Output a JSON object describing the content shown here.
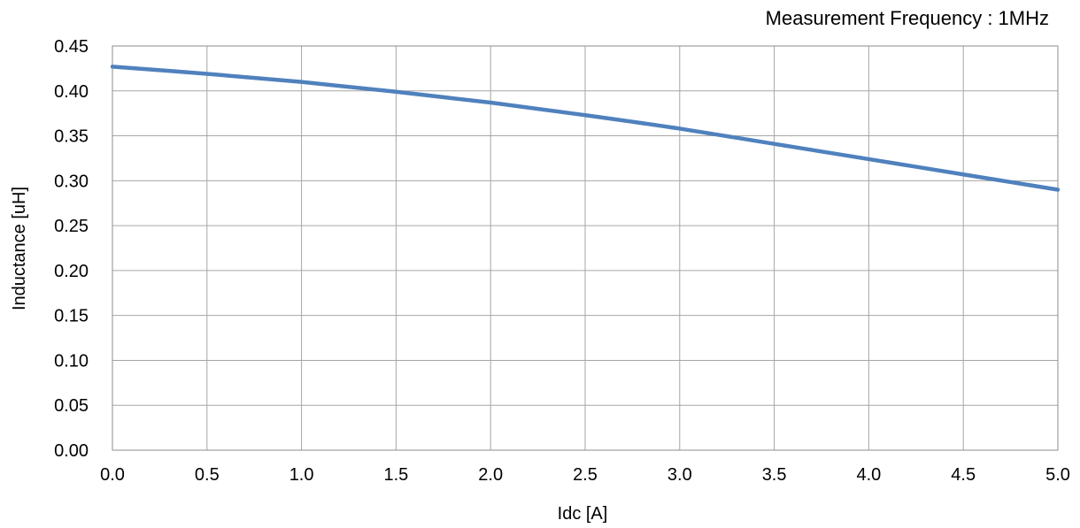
{
  "chart_data": {
    "type": "line",
    "title": "",
    "annotation": "Measurement Frequency : 1MHz",
    "xlabel": "Idc [A]",
    "ylabel": "Inductance [uH]",
    "xlim": [
      0,
      5
    ],
    "ylim": [
      0,
      0.45
    ],
    "x_ticks": [
      "0.0",
      "0.5",
      "1.0",
      "1.5",
      "2.0",
      "2.5",
      "3.0",
      "3.5",
      "4.0",
      "4.5",
      "5.0"
    ],
    "y_ticks": [
      "0.00",
      "0.05",
      "0.10",
      "0.15",
      "0.20",
      "0.25",
      "0.30",
      "0.35",
      "0.40",
      "0.45"
    ],
    "grid": true,
    "legend": "none",
    "colors": {
      "line": "#4f81bd",
      "grid": "#a6a6a6",
      "frame": "#8c8c8c"
    },
    "series": [
      {
        "x": [
          0.0,
          0.5,
          1.0,
          1.5,
          2.0,
          2.5,
          3.0,
          3.5,
          4.0,
          4.5,
          5.0
        ],
        "y": [
          0.427,
          0.419,
          0.41,
          0.399,
          0.387,
          0.373,
          0.358,
          0.341,
          0.324,
          0.307,
          0.29
        ]
      }
    ]
  }
}
